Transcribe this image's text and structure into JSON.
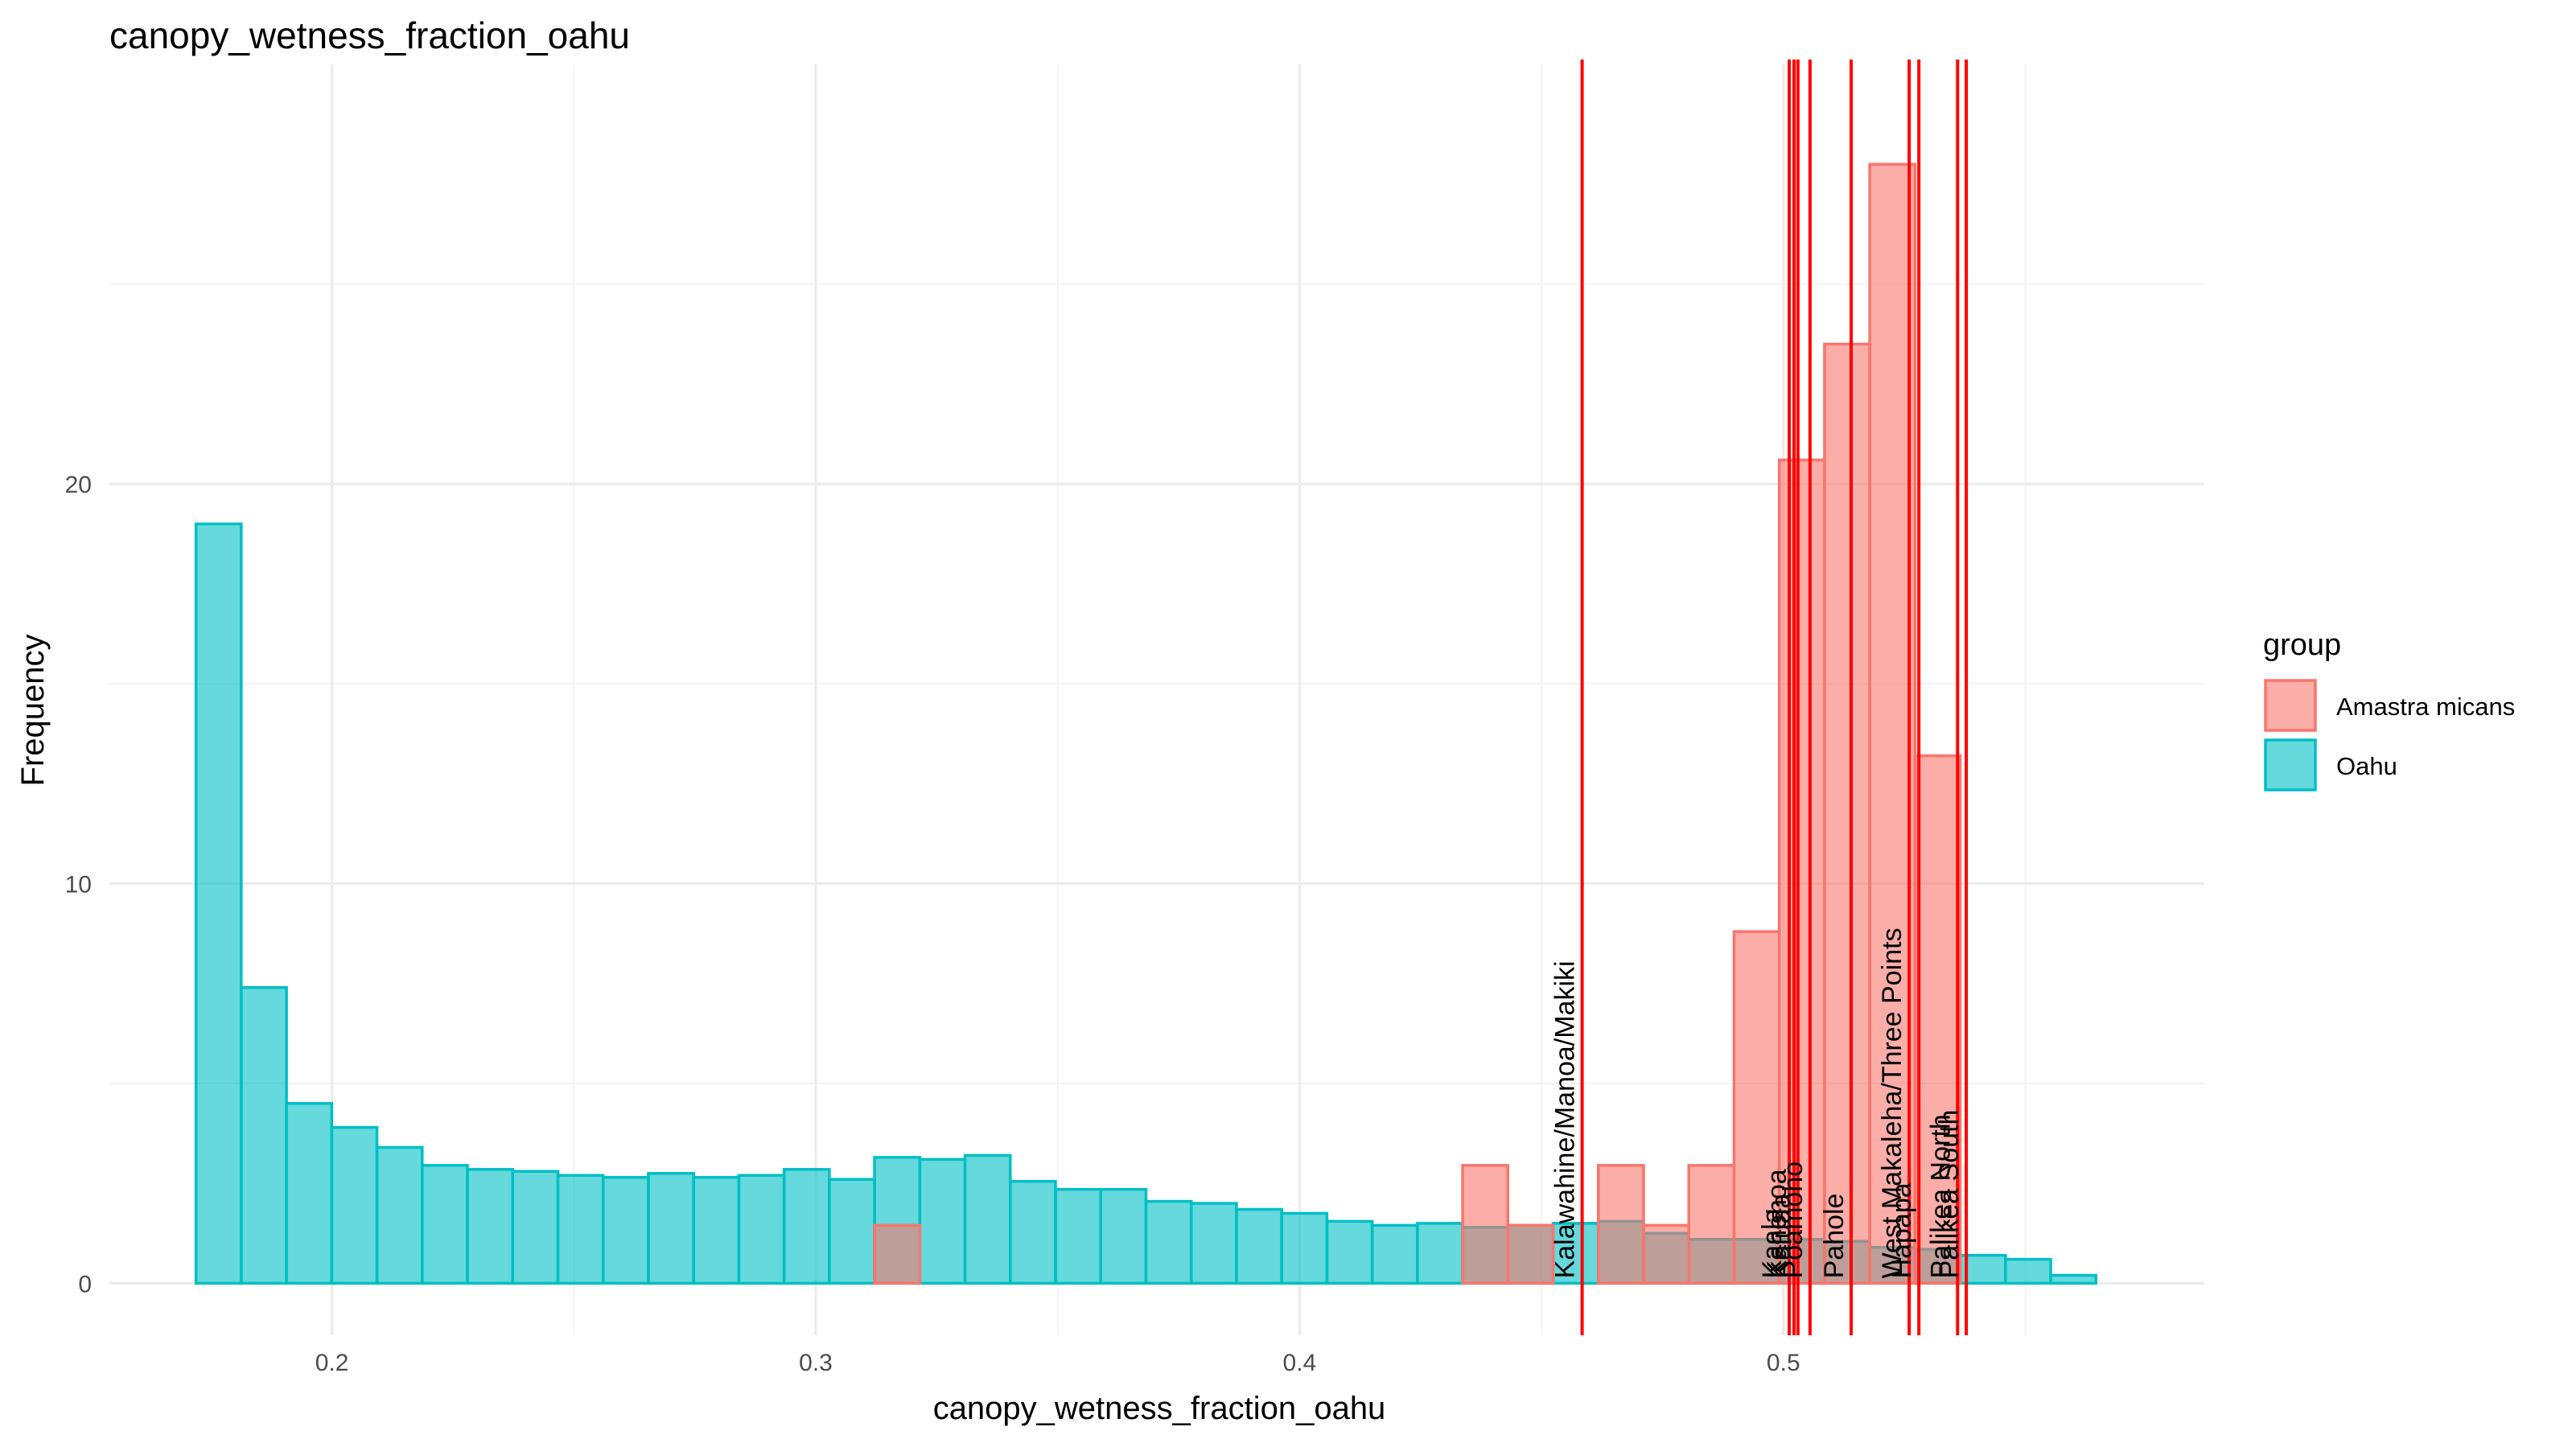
{
  "chart_data": {
    "type": "histogram",
    "title": "canopy_wetness_fraction_oahu",
    "xlabel": "canopy_wetness_fraction_oahu",
    "ylabel": "Frequency",
    "xlim": [
      0.154,
      0.587
    ],
    "ylim": [
      -1.3,
      30.5
    ],
    "x_ticks": [
      {
        "value": 0.2,
        "label": "0.2"
      },
      {
        "value": 0.3,
        "label": "0.3"
      },
      {
        "value": 0.4,
        "label": "0.4"
      },
      {
        "value": 0.5,
        "label": "0.5"
      }
    ],
    "y_ticks": [
      {
        "value": 0,
        "label": "0"
      },
      {
        "value": 10,
        "label": "10"
      },
      {
        "value": 20,
        "label": "20"
      }
    ],
    "bin_start": 0.1719,
    "bin_width": 0.00935,
    "grid": true,
    "legend": {
      "title": "group",
      "position": "right",
      "entries": [
        {
          "name": "Amastra micans",
          "fill": "#f8766d",
          "stroke": "#f8766d"
        },
        {
          "name": "Oahu",
          "fill": "#00bfc4",
          "stroke": "#00bfc4"
        }
      ]
    },
    "series": [
      {
        "name": "Oahu",
        "fill": "#00bfc4",
        "stroke": "#00bfc4",
        "values": [
          19.0,
          7.4,
          4.5,
          3.9,
          3.4,
          2.95,
          2.85,
          2.8,
          2.7,
          2.65,
          2.75,
          2.65,
          2.7,
          2.85,
          2.6,
          3.15,
          3.1,
          3.2,
          2.55,
          2.35,
          2.35,
          2.05,
          2.0,
          1.85,
          1.75,
          1.55,
          1.45,
          1.5,
          1.4,
          1.45,
          1.5,
          1.55,
          1.25,
          1.1,
          1.1,
          1.1,
          1.05,
          0.9,
          0.85,
          0.7,
          0.6,
          0.2
        ]
      },
      {
        "name": "Amastra micans",
        "fill": "#f8766d",
        "stroke": "#f8766d",
        "values": [
          0,
          0,
          0,
          0,
          0,
          0,
          0,
          0,
          0,
          0,
          0,
          0,
          0,
          0,
          0,
          1.45,
          0,
          0,
          0,
          0,
          0,
          0,
          0,
          0,
          0,
          0,
          0,
          0,
          2.95,
          1.45,
          0,
          2.95,
          1.45,
          2.95,
          8.8,
          20.6,
          23.5,
          28.0,
          13.2,
          0,
          0,
          0
        ]
      }
    ],
    "vlines": [
      {
        "x": 0.4584,
        "label": "Kalawahine/Manoa/Makiki"
      },
      {
        "x": 0.5012,
        "label": "Kaala"
      },
      {
        "x": 0.5022,
        "label": "Kanehoa"
      },
      {
        "x": 0.503,
        "label": "Kaluaa"
      },
      {
        "x": 0.5055,
        "label": "Poamoho"
      },
      {
        "x": 0.514,
        "label": "Pahole"
      },
      {
        "x": 0.526,
        "label": "West Makaleha/Three Points"
      },
      {
        "x": 0.528,
        "label": "Hapapa"
      },
      {
        "x": 0.536,
        "label": "Palikea North"
      },
      {
        "x": 0.5378,
        "label": "Palikea South"
      }
    ],
    "vline_color": "#ff0000"
  }
}
